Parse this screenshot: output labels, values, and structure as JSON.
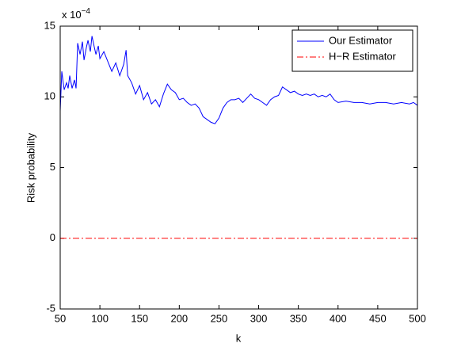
{
  "chart_data": {
    "type": "line",
    "x_label": "k",
    "y_label": "Risk probability",
    "y_scale_base": "x 10",
    "y_scale_exponent": "−4",
    "xlim": [
      50,
      500
    ],
    "xticks": [
      50,
      100,
      150,
      200,
      250,
      300,
      350,
      400,
      450,
      500
    ],
    "ylim": [
      -5,
      15
    ],
    "yticks": [
      -5,
      0,
      5,
      10,
      15
    ],
    "grid": false,
    "legend": "northeast",
    "series": [
      {
        "name": "Our Estimator",
        "color": "#0000ff",
        "style": "solid",
        "x": [
          50,
          52,
          55,
          58,
          60,
          62,
          65,
          68,
          70,
          72,
          75,
          78,
          80,
          83,
          85,
          88,
          90,
          93,
          95,
          98,
          100,
          105,
          110,
          115,
          120,
          125,
          130,
          133,
          135,
          140,
          145,
          150,
          155,
          160,
          165,
          170,
          175,
          180,
          185,
          190,
          195,
          200,
          205,
          210,
          215,
          220,
          225,
          230,
          235,
          240,
          245,
          250,
          255,
          260,
          265,
          270,
          275,
          280,
          285,
          290,
          295,
          300,
          305,
          310,
          315,
          320,
          325,
          330,
          335,
          340,
          345,
          350,
          355,
          360,
          365,
          370,
          375,
          380,
          385,
          390,
          395,
          400,
          410,
          420,
          430,
          440,
          450,
          460,
          470,
          480,
          490,
          495,
          500
        ],
        "values": [
          9,
          11.8,
          10.5,
          11,
          10.6,
          11.5,
          10.6,
          11.2,
          10.6,
          13.8,
          13,
          13.9,
          12.6,
          13.5,
          14,
          13.2,
          14.3,
          13.5,
          13,
          13.6,
          12.7,
          13.2,
          12.5,
          11.8,
          12.4,
          11.5,
          12.3,
          13.3,
          11.5,
          11,
          10.2,
          10.8,
          9.8,
          10.3,
          9.5,
          9.8,
          9.3,
          10.2,
          10.9,
          10.5,
          10.3,
          9.8,
          9.9,
          9.6,
          9.4,
          9.5,
          9.2,
          8.6,
          8.4,
          8.2,
          8.1,
          8.5,
          9.2,
          9.6,
          9.8,
          9.8,
          9.9,
          9.6,
          9.9,
          10.2,
          9.9,
          9.8,
          9.6,
          9.4,
          9.8,
          10,
          10.1,
          10.7,
          10.5,
          10.3,
          10.4,
          10.2,
          10.1,
          10.2,
          10.1,
          10.2,
          10,
          10.1,
          10,
          10.2,
          9.8,
          9.6,
          9.7,
          9.6,
          9.6,
          9.5,
          9.6,
          9.6,
          9.5,
          9.6,
          9.5,
          9.6,
          9.4
        ]
      },
      {
        "name": "H−R Estimator",
        "color": "#ff0000",
        "style": "dashdot",
        "x": [
          50,
          500
        ],
        "values": [
          0,
          0
        ]
      }
    ]
  }
}
